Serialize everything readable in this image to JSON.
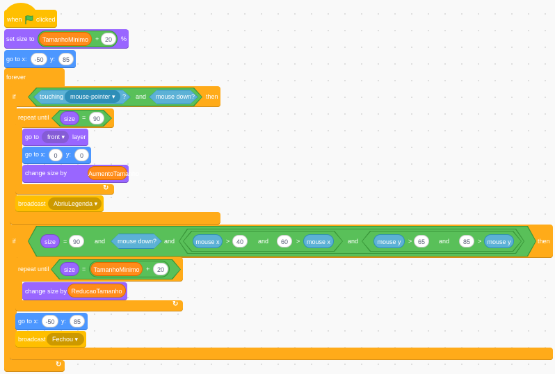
{
  "script": {
    "hat": {
      "when": "when",
      "clicked": "clicked",
      "icon": "green-flag-icon"
    },
    "set_size": {
      "label": "set size to",
      "var": "TamanhoMinimo",
      "op": "+",
      "num": "20",
      "unit": "%"
    },
    "goto1": {
      "label": "go to x:",
      "x": "-50",
      "y_label": "y:",
      "y": "85"
    },
    "forever": "forever",
    "if1": {
      "if": "if",
      "touching": "touching",
      "target": "mouse-pointer",
      "q": "?",
      "and": "and",
      "mouse_down": "mouse down?",
      "then": "then",
      "repeat": {
        "label": "repeat until",
        "size": "size",
        "eq": "=",
        "num": "90"
      },
      "front": {
        "label": "go to",
        "option": "front",
        "layer": "layer"
      },
      "goto": {
        "label": "go to x:",
        "x": "0",
        "y_label": "y:",
        "y": "0"
      },
      "change": {
        "label": "change size by",
        "var": "AumentoTamanho"
      },
      "broadcast": {
        "label": "broadcast",
        "message": "AbriuLegenda"
      }
    },
    "if2": {
      "if": "if",
      "size": "size",
      "eq": "=",
      "num90": "90",
      "and": "and",
      "mouse_down": "mouse down?",
      "mouse_x": "mouse x",
      "gt": ">",
      "n40": "40",
      "n60": "60",
      "mouse_y": "mouse y",
      "n65": "65",
      "n85": "85",
      "then": "then",
      "repeat": {
        "label": "repeat until",
        "size": "size",
        "eq": "=",
        "var": "TamanhoMinimo",
        "op": "+",
        "num": "20"
      },
      "change": {
        "label": "change size by",
        "var": "ReducaoTamanho"
      },
      "goto": {
        "label": "go to x:",
        "x": "-50",
        "y_label": "y:",
        "y": "85"
      },
      "broadcast": {
        "label": "broadcast",
        "message": "Fechou"
      }
    }
  },
  "colors": {
    "events": "#FFBF00",
    "looks": "#9966FF",
    "motion": "#4C97FF",
    "control": "#FFAB19",
    "operators": "#59C059",
    "sensing": "#5CB1D6",
    "variables": "#FF8C1A"
  }
}
